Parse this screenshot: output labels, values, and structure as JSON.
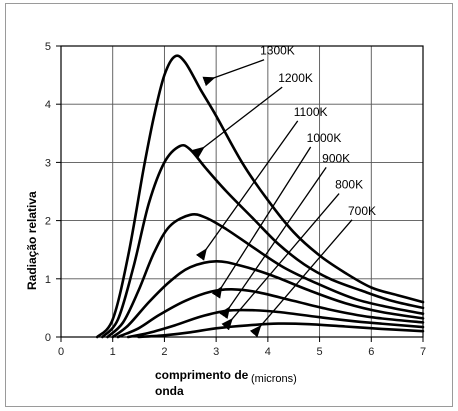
{
  "chart_data": {
    "type": "line",
    "xlabel_line1": "comprimento de",
    "xlabel_line2": "onda",
    "xlabel_unit": "(microns)",
    "ylabel": "Radiação relativa",
    "xlim": [
      0,
      7
    ],
    "ylim": [
      0,
      5
    ],
    "x_ticks": [
      "0",
      "1",
      "2",
      "3",
      "4",
      "5",
      "6",
      "7"
    ],
    "y_ticks": [
      "0",
      "1",
      "2",
      "3",
      "4",
      "5"
    ],
    "grid": true,
    "line_color": "#000000",
    "series": [
      {
        "name": "1300K",
        "points": [
          [
            0.7,
            0
          ],
          [
            1.0,
            0.3
          ],
          [
            1.3,
            1.4
          ],
          [
            1.6,
            2.9
          ],
          [
            1.8,
            3.8
          ],
          [
            2.0,
            4.5
          ],
          [
            2.2,
            4.82
          ],
          [
            2.4,
            4.72
          ],
          [
            2.7,
            4.25
          ],
          [
            3.0,
            3.8
          ],
          [
            3.5,
            3.0
          ],
          [
            4.0,
            2.35
          ],
          [
            4.5,
            1.8
          ],
          [
            5.0,
            1.4
          ],
          [
            5.5,
            1.1
          ],
          [
            6.0,
            0.85
          ],
          [
            6.5,
            0.72
          ],
          [
            7.0,
            0.6
          ]
        ]
      },
      {
        "name": "1200K",
        "points": [
          [
            0.8,
            0
          ],
          [
            1.1,
            0.3
          ],
          [
            1.4,
            1.2
          ],
          [
            1.7,
            2.3
          ],
          [
            2.0,
            3.0
          ],
          [
            2.3,
            3.28
          ],
          [
            2.5,
            3.22
          ],
          [
            2.8,
            2.9
          ],
          [
            3.2,
            2.5
          ],
          [
            3.7,
            2.05
          ],
          [
            4.2,
            1.6
          ],
          [
            4.7,
            1.25
          ],
          [
            5.2,
            1.0
          ],
          [
            5.8,
            0.8
          ],
          [
            6.4,
            0.62
          ],
          [
            7.0,
            0.5
          ]
        ]
      },
      {
        "name": "1100K",
        "points": [
          [
            0.9,
            0
          ],
          [
            1.2,
            0.25
          ],
          [
            1.5,
            0.8
          ],
          [
            1.8,
            1.45
          ],
          [
            2.1,
            1.9
          ],
          [
            2.5,
            2.1
          ],
          [
            2.8,
            2.05
          ],
          [
            3.2,
            1.85
          ],
          [
            3.7,
            1.55
          ],
          [
            4.3,
            1.2
          ],
          [
            5.0,
            0.9
          ],
          [
            5.7,
            0.65
          ],
          [
            6.4,
            0.5
          ],
          [
            7.0,
            0.4
          ]
        ]
      },
      {
        "name": "1000K",
        "points": [
          [
            1.0,
            0
          ],
          [
            1.3,
            0.2
          ],
          [
            1.7,
            0.6
          ],
          [
            2.1,
            0.95
          ],
          [
            2.5,
            1.2
          ],
          [
            3.0,
            1.3
          ],
          [
            3.5,
            1.22
          ],
          [
            4.1,
            1.05
          ],
          [
            4.8,
            0.8
          ],
          [
            5.5,
            0.58
          ],
          [
            6.2,
            0.43
          ],
          [
            7.0,
            0.32
          ]
        ]
      },
      {
        "name": "900K",
        "points": [
          [
            1.1,
            0
          ],
          [
            1.5,
            0.15
          ],
          [
            1.9,
            0.38
          ],
          [
            2.4,
            0.62
          ],
          [
            2.9,
            0.78
          ],
          [
            3.3,
            0.82
          ],
          [
            3.8,
            0.77
          ],
          [
            4.5,
            0.62
          ],
          [
            5.2,
            0.47
          ],
          [
            6.0,
            0.34
          ],
          [
            7.0,
            0.25
          ]
        ]
      },
      {
        "name": "800K",
        "points": [
          [
            1.3,
            0
          ],
          [
            1.7,
            0.07
          ],
          [
            2.2,
            0.2
          ],
          [
            2.7,
            0.35
          ],
          [
            3.2,
            0.45
          ],
          [
            3.7,
            0.46
          ],
          [
            4.2,
            0.43
          ],
          [
            5.0,
            0.34
          ],
          [
            5.8,
            0.26
          ],
          [
            7.0,
            0.17
          ]
        ]
      },
      {
        "name": "700K",
        "points": [
          [
            1.5,
            0
          ],
          [
            2.0,
            0.03
          ],
          [
            2.5,
            0.08
          ],
          [
            3.0,
            0.15
          ],
          [
            3.6,
            0.2
          ],
          [
            4.2,
            0.23
          ],
          [
            4.8,
            0.22
          ],
          [
            5.5,
            0.18
          ],
          [
            6.2,
            0.14
          ],
          [
            7.0,
            0.1
          ]
        ]
      }
    ],
    "annotations": [
      {
        "text": "1300K",
        "label_at": [
          3.85,
          4.85
        ],
        "arrow_to": [
          2.95,
          4.45
        ]
      },
      {
        "text": "1200K",
        "label_at": [
          4.2,
          4.38
        ],
        "arrow_to": [
          2.75,
          3.25
        ]
      },
      {
        "text": "1100K",
        "label_at": [
          4.5,
          3.8
        ],
        "arrow_to": [
          2.8,
          1.5
        ]
      },
      {
        "text": "1000K",
        "label_at": [
          4.75,
          3.35
        ],
        "arrow_to": [
          3.1,
          0.85
        ]
      },
      {
        "text": "900K",
        "label_at": [
          5.05,
          3.0
        ],
        "arrow_to": [
          3.25,
          0.5
        ]
      },
      {
        "text": "800K",
        "label_at": [
          5.3,
          2.55
        ],
        "arrow_to": [
          3.3,
          0.3
        ]
      },
      {
        "text": "700K",
        "label_at": [
          5.55,
          2.1
        ],
        "arrow_to": [
          3.85,
          0.18
        ]
      }
    ]
  }
}
